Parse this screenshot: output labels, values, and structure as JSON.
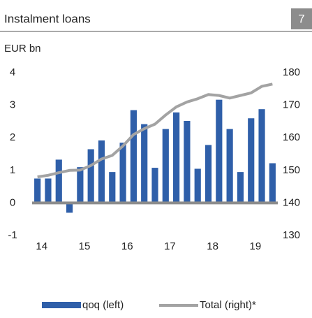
{
  "page_number": "7",
  "chart_data": {
    "type": "bar",
    "title": "Instalment loans",
    "y_label": "EUR bn",
    "categories": [
      "14",
      null,
      null,
      null,
      "15",
      null,
      null,
      null,
      "16",
      null,
      null,
      null,
      "17",
      null,
      null,
      null,
      "18",
      null,
      null,
      null,
      "19",
      null,
      null
    ],
    "series": [
      {
        "name": "qoq (left)",
        "type": "bar",
        "color": "#2f5fa9",
        "values": [
          0.75,
          0.75,
          1.33,
          -0.3,
          1.1,
          1.65,
          1.92,
          0.95,
          1.85,
          2.85,
          2.42,
          1.08,
          2.27,
          2.78,
          2.52,
          1.05,
          1.78,
          3.17,
          2.27,
          0.95,
          2.6,
          2.88,
          1.22
        ]
      },
      {
        "name": "Total (right)*",
        "type": "line",
        "axis": "y2",
        "color": "#a3a3a3",
        "values": [
          148,
          148.5,
          149.3,
          150,
          150.1,
          151.5,
          153.5,
          154.6,
          157.5,
          161,
          162.8,
          164.2,
          167,
          169.5,
          171,
          172,
          173.3,
          173,
          172.2,
          173,
          173.8,
          175.8,
          176.5
        ]
      }
    ],
    "ylim": [
      -1,
      4
    ],
    "yticks": [
      -1,
      0,
      1,
      2,
      3,
      4
    ],
    "y2lim": [
      130,
      180
    ],
    "y2ticks": [
      130,
      140,
      150,
      160,
      170,
      180
    ],
    "grid": false
  }
}
